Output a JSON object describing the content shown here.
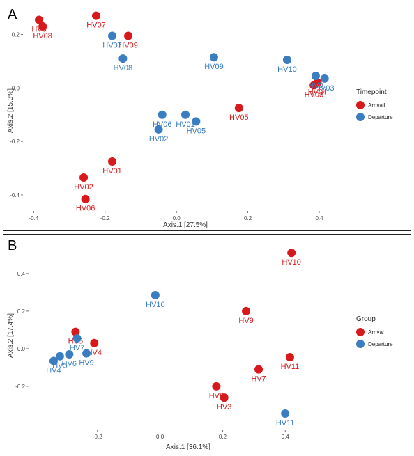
{
  "colors": {
    "arrival": "#d7191c",
    "departure": "#3a7dc0"
  },
  "chart_data": [
    {
      "panel_letter": "A",
      "type": "scatter",
      "xlabel": "Axis.1   [27.5%]",
      "ylabel": "Axis.2   [15.3%]",
      "xlim": [
        -0.43,
        0.48
      ],
      "ylim": [
        -0.46,
        0.29
      ],
      "xticks": [
        -0.4,
        -0.2,
        0.0,
        0.2,
        0.4
      ],
      "xtick_labels": [
        "-0.4",
        "-0.2",
        "0.0",
        "0.2",
        "0.4"
      ],
      "yticks": [
        -0.4,
        -0.2,
        0.0,
        0.2
      ],
      "ytick_labels": [
        "-0.4",
        "-0.2",
        "0.0",
        "0.2"
      ],
      "legend_title": "Timepoint",
      "legend_position": "right",
      "series": [
        {
          "name": "Arrivall",
          "color_key": "arrival",
          "points": [
            {
              "x": -0.385,
              "y": 0.255,
              "label": "HV0"
            },
            {
              "x": -0.375,
              "y": 0.23,
              "label": "HV08"
            },
            {
              "x": -0.225,
              "y": 0.27,
              "label": "HV07"
            },
            {
              "x": -0.135,
              "y": 0.195,
              "label": "HV09"
            },
            {
              "x": 0.175,
              "y": -0.075,
              "label": "HV05"
            },
            {
              "x": -0.18,
              "y": -0.275,
              "label": "HV01"
            },
            {
              "x": -0.26,
              "y": -0.335,
              "label": "HV02"
            },
            {
              "x": -0.255,
              "y": -0.415,
              "label": "HV06"
            },
            {
              "x": 0.385,
              "y": 0.01,
              "label": "HV03"
            },
            {
              "x": 0.395,
              "y": 0.02,
              "label": "HV04"
            }
          ]
        },
        {
          "name": "Departure",
          "color_key": "departure",
          "points": [
            {
              "x": -0.18,
              "y": 0.195,
              "label": "HV07"
            },
            {
              "x": -0.15,
              "y": 0.11,
              "label": "HV08"
            },
            {
              "x": 0.105,
              "y": 0.115,
              "label": "HV09"
            },
            {
              "x": 0.31,
              "y": 0.105,
              "label": "HV10"
            },
            {
              "x": 0.39,
              "y": 0.045,
              "label": "HV0"
            },
            {
              "x": 0.415,
              "y": 0.035,
              "label": "HV03"
            },
            {
              "x": -0.04,
              "y": -0.1,
              "label": "HV06"
            },
            {
              "x": 0.025,
              "y": -0.1,
              "label": "HV01"
            },
            {
              "x": 0.055,
              "y": -0.125,
              "label": "HV05"
            },
            {
              "x": -0.05,
              "y": -0.155,
              "label": "HV02"
            }
          ]
        }
      ]
    },
    {
      "panel_letter": "B",
      "type": "scatter",
      "xlabel": "Axis.1   [36.1%]",
      "ylabel": "Axis.2   [17.4%]",
      "xlim": [
        -0.42,
        0.6
      ],
      "ylim": [
        -0.43,
        0.57
      ],
      "xticks": [
        -0.2,
        0.0,
        0.2,
        0.4
      ],
      "xtick_labels": [
        "-0.2",
        "0.0",
        "0.2",
        "0.4"
      ],
      "yticks": [
        -0.2,
        0.0,
        0.2,
        0.4
      ],
      "ytick_labels": [
        "-0.2",
        "0.0",
        "0.2",
        "0.4"
      ],
      "legend_title": "Group",
      "legend_position": "right",
      "series": [
        {
          "name": "Arrival",
          "color_key": "arrival",
          "points": [
            {
              "x": 0.42,
              "y": 0.51,
              "label": "HV10"
            },
            {
              "x": 0.275,
              "y": 0.2,
              "label": "HV9"
            },
            {
              "x": 0.415,
              "y": -0.045,
              "label": "HV11"
            },
            {
              "x": 0.315,
              "y": -0.11,
              "label": "HV7"
            },
            {
              "x": 0.18,
              "y": -0.2,
              "label": "HV6"
            },
            {
              "x": 0.205,
              "y": -0.26,
              "label": "HV3"
            },
            {
              "x": -0.27,
              "y": 0.09,
              "label": "HV5"
            },
            {
              "x": -0.21,
              "y": 0.03,
              "label": "HV4"
            }
          ]
        },
        {
          "name": "Departure",
          "color_key": "departure",
          "points": [
            {
              "x": -0.015,
              "y": 0.285,
              "label": "HV10"
            },
            {
              "x": -0.265,
              "y": 0.055,
              "label": "HV7"
            },
            {
              "x": -0.235,
              "y": -0.025,
              "label": "HV9"
            },
            {
              "x": -0.29,
              "y": -0.03,
              "label": "HV6"
            },
            {
              "x": -0.32,
              "y": -0.04,
              "label": "HV5"
            },
            {
              "x": -0.34,
              "y": -0.065,
              "label": "HV4"
            },
            {
              "x": 0.4,
              "y": -0.345,
              "label": "HV11"
            }
          ]
        }
      ]
    }
  ]
}
